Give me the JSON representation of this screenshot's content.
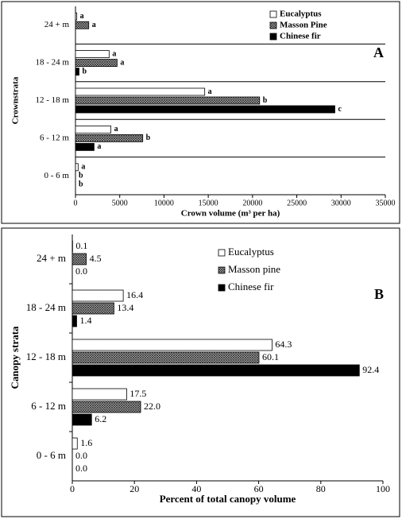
{
  "chart_data": [
    {
      "type": "bar",
      "orientation": "horizontal",
      "panel_label": "A",
      "x_label": "Crown volume (m³ per ha)",
      "y_label": "Crownstrata",
      "categories": [
        "24 + m",
        "18 - 24 m",
        "12 - 18 m",
        "6 - 12 m",
        "0 - 6 m"
      ],
      "series": [
        {
          "name": "Eucalyptus",
          "color": "#ffffff",
          "values": [
            150,
            3800,
            14600,
            4000,
            300
          ],
          "letters": [
            "a",
            "a",
            "a",
            "a",
            "a"
          ]
        },
        {
          "name": "Masson Pine",
          "color": "#555555",
          "pattern": "hatch",
          "values": [
            1500,
            4700,
            20800,
            7600,
            0
          ],
          "letters": [
            "a",
            "a",
            "b",
            "b",
            "b"
          ]
        },
        {
          "name": "Chinese fir",
          "color": "#000000",
          "values": [
            0,
            400,
            29300,
            2100,
            0
          ],
          "letters": [
            null,
            "b",
            "c",
            "a",
            "b"
          ]
        }
      ],
      "xlim": [
        0,
        35000
      ],
      "xticks": [
        0,
        5000,
        10000,
        15000,
        20000,
        25000,
        30000,
        35000
      ],
      "category_dividers": true,
      "legend": "upper right"
    },
    {
      "type": "bar",
      "orientation": "horizontal",
      "panel_label": "B",
      "x_label": "Percent of total canopy volume",
      "y_label": "Canopy strata",
      "categories": [
        "24 + m",
        "18 - 24 m",
        "12 - 18 m",
        "6 - 12 m",
        "0 - 6 m"
      ],
      "series": [
        {
          "name": "Eucalyptus",
          "color": "#ffffff",
          "values": [
            0.1,
            16.4,
            64.3,
            17.5,
            1.6
          ],
          "value_labels": [
            "0.1",
            "16.4",
            "64.3",
            "17.5",
            "1.6"
          ]
        },
        {
          "name": "Masson pine",
          "color": "#555555",
          "pattern": "hatch",
          "values": [
            4.5,
            13.4,
            60.1,
            22.0,
            0.0
          ],
          "value_labels": [
            "4.5",
            "13.4",
            "60.1",
            "22.0",
            "0.0"
          ]
        },
        {
          "name": "Chinese fir",
          "color": "#000000",
          "values": [
            0.0,
            1.4,
            92.4,
            6.2,
            0.0
          ],
          "value_labels": [
            "0.0",
            "1.4",
            "92.4",
            "6.2",
            "0.0"
          ]
        }
      ],
      "xlim": [
        0,
        100
      ],
      "xticks": [
        0,
        20,
        40,
        60,
        80,
        100
      ],
      "category_dividers": false,
      "legend": "upper right"
    }
  ]
}
